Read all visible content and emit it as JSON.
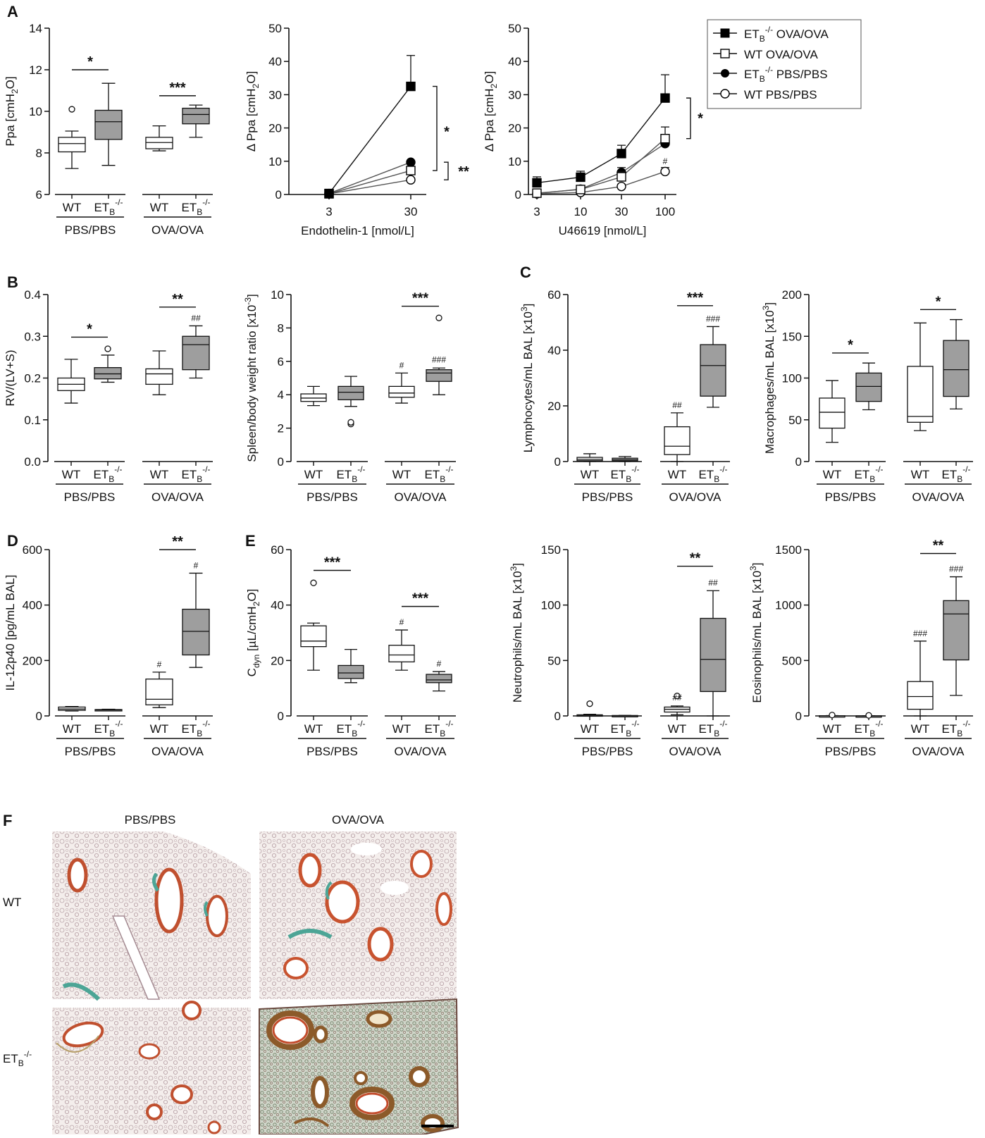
{
  "panel_letters": [
    "A",
    "B",
    "C",
    "D",
    "E",
    "F"
  ],
  "legend": {
    "items": [
      {
        "label": "ET",
        "sub": "B",
        "sup": "-/-",
        "rest": " OVA/OVA",
        "marker": "square",
        "fill": "#000000"
      },
      {
        "label": "WT OVA/OVA",
        "sub": "",
        "sup": "",
        "rest": "",
        "marker": "square",
        "fill": "#ffffff"
      },
      {
        "label": "ET",
        "sub": "B",
        "sup": "-/-",
        "rest": " PBS/PBS",
        "marker": "circle",
        "fill": "#000000"
      },
      {
        "label": "WT PBS/PBS",
        "sub": "",
        "sup": "",
        "rest": "",
        "marker": "circle",
        "fill": "#ffffff"
      }
    ]
  },
  "colors": {
    "ko_box": "#9e9e9e",
    "wt_box": "#ffffff",
    "line": "#111111",
    "tissue": "#ece4e0"
  },
  "groups": [
    "PBS/PBS",
    "OVA/OVA"
  ],
  "genotypes": [
    "WT",
    "ET_B^-/-"
  ],
  "histology": {
    "col_labels": [
      "PBS/PBS",
      "OVA/OVA"
    ],
    "row_labels": [
      "WT",
      "ET_B^-/-"
    ]
  },
  "chart_data": [
    {
      "id": "ppa",
      "panel": "A",
      "type": "box",
      "ylabel": "Ppa [cmH2O]",
      "ylim": [
        6,
        14
      ],
      "yticks": [
        6,
        8,
        10,
        12,
        14
      ],
      "boxes": [
        {
          "group": "PBS/PBS",
          "genotype": "WT",
          "min": 7.25,
          "q1": 8.05,
          "median": 8.45,
          "q3": 8.75,
          "max": 9.05,
          "outliers": [
            10.1
          ],
          "hash": ""
        },
        {
          "group": "PBS/PBS",
          "genotype": "ET_B^-/-",
          "min": 7.4,
          "q1": 8.65,
          "median": 9.5,
          "q3": 10.05,
          "max": 11.35,
          "outliers": [],
          "hash": ""
        },
        {
          "group": "OVA/OVA",
          "genotype": "WT",
          "min": 8.1,
          "q1": 8.2,
          "median": 8.5,
          "q3": 8.75,
          "max": 9.3,
          "outliers": [],
          "hash": ""
        },
        {
          "group": "OVA/OVA",
          "genotype": "ET_B^-/-",
          "min": 8.75,
          "q1": 9.4,
          "median": 9.85,
          "q3": 10.15,
          "max": 10.3,
          "outliers": [],
          "hash": ""
        }
      ],
      "sig": [
        {
          "label": "*",
          "pair": [
            0,
            1
          ],
          "y": 12.0
        },
        {
          "label": "***",
          "pair": [
            2,
            3
          ],
          "y": 10.75
        }
      ]
    },
    {
      "id": "et1",
      "panel": "A",
      "type": "line",
      "ylabel": "Δ Ppa [cmH2O]",
      "xlabel": "Endothelin-1 [nmol/L]",
      "x": [
        3,
        30
      ],
      "ylim": [
        0,
        50
      ],
      "yticks": [
        0,
        10,
        20,
        30,
        40,
        50
      ],
      "series": [
        {
          "name": "ETB-/- OVA/OVA",
          "values": [
            0.3,
            32.5
          ],
          "err": [
            0,
            9.3
          ]
        },
        {
          "name": "WT OVA/OVA",
          "values": [
            0.2,
            7.2
          ],
          "err": [
            0,
            0
          ]
        },
        {
          "name": "ETB-/- PBS/PBS",
          "values": [
            0.3,
            9.7
          ],
          "err": [
            0,
            0
          ]
        },
        {
          "name": "WT PBS/PBS",
          "values": [
            0.2,
            4.4
          ],
          "err": [
            0,
            0
          ]
        }
      ],
      "sig": [
        {
          "label": "*"
        },
        {
          "label": "**"
        }
      ]
    },
    {
      "id": "u46619",
      "panel": "A",
      "type": "line",
      "ylabel": "Δ Ppa [cmH2O]",
      "xlabel": "U46619 [nmol/L]",
      "x": [
        3,
        10,
        30,
        100
      ],
      "ylim": [
        0,
        50
      ],
      "yticks": [
        0,
        10,
        20,
        30,
        40,
        50
      ],
      "series": [
        {
          "name": "ETB-/- OVA/OVA",
          "values": [
            3.5,
            5.2,
            12.3,
            29.0
          ],
          "err": [
            1.8,
            1.8,
            2.5,
            7.0
          ]
        },
        {
          "name": "WT OVA/OVA",
          "values": [
            0.4,
            1.5,
            5.3,
            16.8
          ],
          "err": [
            0.3,
            0.6,
            1.5,
            3.5
          ]
        },
        {
          "name": "ETB-/- PBS/PBS",
          "values": [
            0.3,
            1.6,
            6.6,
            15.3
          ],
          "err": [
            0.3,
            0.6,
            1.5,
            2.5
          ]
        },
        {
          "name": "WT PBS/PBS",
          "values": [
            0.2,
            0.6,
            2.4,
            6.9
          ],
          "err": [
            0.2,
            0.3,
            0.6,
            1.2
          ]
        }
      ],
      "sig": [
        {
          "label": "*"
        },
        {
          "label": "#"
        }
      ]
    },
    {
      "id": "rv",
      "panel": "B",
      "type": "box",
      "ylabel": "RV/(LV+S)",
      "ylim": [
        0,
        0.4
      ],
      "yticks": [
        0.0,
        0.1,
        0.2,
        0.3,
        0.4
      ],
      "boxes": [
        {
          "group": "PBS/PBS",
          "genotype": "WT",
          "min": 0.14,
          "q1": 0.17,
          "median": 0.185,
          "q3": 0.2,
          "max": 0.245,
          "outliers": [],
          "hash": ""
        },
        {
          "group": "PBS/PBS",
          "genotype": "ET_B^-/-",
          "min": 0.19,
          "q1": 0.198,
          "median": 0.21,
          "q3": 0.225,
          "max": 0.255,
          "outliers": [
            0.27
          ],
          "hash": ""
        },
        {
          "group": "OVA/OVA",
          "genotype": "WT",
          "min": 0.16,
          "q1": 0.185,
          "median": 0.21,
          "q3": 0.222,
          "max": 0.265,
          "outliers": [],
          "hash": ""
        },
        {
          "group": "OVA/OVA",
          "genotype": "ET_B^-/-",
          "min": 0.2,
          "q1": 0.22,
          "median": 0.28,
          "q3": 0.3,
          "max": 0.325,
          "outliers": [],
          "hash": "##"
        }
      ],
      "sig": [
        {
          "label": "*",
          "pair": [
            0,
            1
          ],
          "y": 0.298
        },
        {
          "label": "**",
          "pair": [
            2,
            3
          ],
          "y": 0.37
        }
      ]
    },
    {
      "id": "spleen",
      "panel": "B",
      "type": "box",
      "ylabel": "Spleen/body weight ratio [x10-3]",
      "ylim": [
        0,
        10
      ],
      "yticks": [
        0,
        2,
        4,
        6,
        8,
        10
      ],
      "boxes": [
        {
          "group": "PBS/PBS",
          "genotype": "WT",
          "min": 3.35,
          "q1": 3.6,
          "median": 3.8,
          "q3": 4.05,
          "max": 4.5,
          "outliers": [],
          "hash": ""
        },
        {
          "group": "PBS/PBS",
          "genotype": "ET_B^-/-",
          "min": 3.3,
          "q1": 3.7,
          "median": 4.15,
          "q3": 4.5,
          "max": 5.1,
          "outliers": [
            2.25,
            2.35
          ],
          "hash": ""
        },
        {
          "group": "OVA/OVA",
          "genotype": "WT",
          "min": 3.5,
          "q1": 3.85,
          "median": 4.1,
          "q3": 4.5,
          "max": 5.3,
          "outliers": [],
          "hash": "#"
        },
        {
          "group": "OVA/OVA",
          "genotype": "ET_B^-/-",
          "min": 4.0,
          "q1": 4.8,
          "median": 5.3,
          "q3": 5.5,
          "max": 5.6,
          "outliers": [
            8.6
          ],
          "hash": "###"
        }
      ],
      "sig": [
        {
          "label": "***",
          "pair": [
            2,
            3
          ],
          "y": 9.3
        }
      ]
    },
    {
      "id": "lymph",
      "panel": "C",
      "type": "box",
      "ylabel": "Lymphocytes/mL BAL [x10^3]",
      "ylim": [
        0,
        60
      ],
      "yticks": [
        0,
        20,
        40,
        60
      ],
      "boxes": [
        {
          "group": "PBS/PBS",
          "genotype": "WT",
          "min": 0,
          "q1": 0.3,
          "median": 0.8,
          "q3": 1.5,
          "max": 2.8,
          "outliers": [],
          "hash": ""
        },
        {
          "group": "PBS/PBS",
          "genotype": "ET_B^-/-",
          "min": 0,
          "q1": 0.2,
          "median": 0.6,
          "q3": 1.2,
          "max": 1.8,
          "outliers": [],
          "hash": ""
        },
        {
          "group": "OVA/OVA",
          "genotype": "WT",
          "min": 0,
          "q1": 2.5,
          "median": 5.5,
          "q3": 12.5,
          "max": 17.5,
          "outliers": [],
          "hash": "##"
        },
        {
          "group": "OVA/OVA",
          "genotype": "ET_B^-/-",
          "min": 19.5,
          "q1": 23.5,
          "median": 34.5,
          "q3": 42.0,
          "max": 48.5,
          "outliers": [],
          "hash": "###"
        }
      ],
      "sig": [
        {
          "label": "***",
          "pair": [
            2,
            3
          ],
          "y": 56.0
        }
      ]
    },
    {
      "id": "macro",
      "panel": "C",
      "type": "box",
      "ylabel": "Macrophages/mL BAL [x10^3]",
      "ylim": [
        0,
        200
      ],
      "yticks": [
        0,
        50,
        100,
        150,
        200
      ],
      "boxes": [
        {
          "group": "PBS/PBS",
          "genotype": "WT",
          "min": 23,
          "q1": 40,
          "median": 59,
          "q3": 76,
          "max": 97,
          "outliers": [],
          "hash": ""
        },
        {
          "group": "PBS/PBS",
          "genotype": "ET_B^-/-",
          "min": 62,
          "q1": 72,
          "median": 90,
          "q3": 106,
          "max": 118,
          "outliers": [],
          "hash": ""
        },
        {
          "group": "OVA/OVA",
          "genotype": "WT",
          "min": 37,
          "q1": 47,
          "median": 54,
          "q3": 114,
          "max": 166,
          "outliers": [],
          "hash": ""
        },
        {
          "group": "OVA/OVA",
          "genotype": "ET_B^-/-",
          "min": 63,
          "q1": 78,
          "median": 110,
          "q3": 145,
          "max": 170,
          "outliers": [],
          "hash": ""
        }
      ],
      "sig": [
        {
          "label": "*",
          "pair": [
            0,
            1
          ],
          "y": 130
        },
        {
          "label": "*",
          "pair": [
            2,
            3
          ],
          "y": 182
        }
      ]
    },
    {
      "id": "il12",
      "panel": "D",
      "type": "box",
      "ylabel": "IL-12p40 [pg/mL BAL]",
      "ylim": [
        0,
        600
      ],
      "yticks": [
        0,
        200,
        400,
        600
      ],
      "boxes": [
        {
          "group": "PBS/PBS",
          "genotype": "WT",
          "min": 18,
          "q1": 20,
          "median": 25,
          "q3": 32,
          "max": 34,
          "outliers": [],
          "hash": ""
        },
        {
          "group": "PBS/PBS",
          "genotype": "ET_B^-/-",
          "min": 20,
          "q1": 21,
          "median": 22,
          "q3": 23,
          "max": 24,
          "outliers": [],
          "hash": ""
        },
        {
          "group": "OVA/OVA",
          "genotype": "WT",
          "min": 30,
          "q1": 40,
          "median": 60,
          "q3": 133,
          "max": 158,
          "outliers": [],
          "hash": "#"
        },
        {
          "group": "OVA/OVA",
          "genotype": "ET_B^-/-",
          "min": 175,
          "q1": 220,
          "median": 305,
          "q3": 385,
          "max": 515,
          "outliers": [],
          "hash": "#"
        }
      ],
      "sig": [
        {
          "label": "**",
          "pair": [
            2,
            3
          ],
          "y": 600
        }
      ]
    },
    {
      "id": "cdyn",
      "panel": "E",
      "type": "box",
      "ylabel": "Cdyn [µL/cmH2O]",
      "ylim": [
        0,
        60
      ],
      "yticks": [
        0,
        20,
        40,
        60
      ],
      "boxes": [
        {
          "group": "PBS/PBS",
          "genotype": "WT",
          "min": 16.5,
          "q1": 25,
          "median": 27,
          "q3": 32.5,
          "max": 33.5,
          "outliers": [
            48
          ],
          "hash": ""
        },
        {
          "group": "PBS/PBS",
          "genotype": "ET_B^-/-",
          "min": 12,
          "q1": 13.5,
          "median": 15.5,
          "q3": 18.2,
          "max": 24,
          "outliers": [],
          "hash": ""
        },
        {
          "group": "OVA/OVA",
          "genotype": "WT",
          "min": 16.5,
          "q1": 19.5,
          "median": 22,
          "q3": 25.5,
          "max": 31,
          "outliers": [],
          "hash": "#"
        },
        {
          "group": "OVA/OVA",
          "genotype": "ET_B^-/-",
          "min": 9,
          "q1": 12,
          "median": 13,
          "q3": 15,
          "max": 16,
          "outliers": [],
          "hash": "#"
        }
      ],
      "sig": [
        {
          "label": "***",
          "pair": [
            0,
            1
          ],
          "y": 52.5
        },
        {
          "label": "***",
          "pair": [
            2,
            3
          ],
          "y": 39.5
        }
      ]
    },
    {
      "id": "neut",
      "panel": "C",
      "type": "box",
      "ylabel": "Neutrophils/mL BAL [x10^3]",
      "ylim": [
        0,
        150
      ],
      "yticks": [
        0,
        50,
        100,
        150
      ],
      "boxes": [
        {
          "group": "PBS/PBS",
          "genotype": "WT",
          "min": 0,
          "q1": 0.2,
          "median": 0.5,
          "q3": 1,
          "max": 1.5,
          "outliers": [
            11
          ],
          "hash": ""
        },
        {
          "group": "PBS/PBS",
          "genotype": "ET_B^-/-",
          "min": 0,
          "q1": 0,
          "median": 0.2,
          "q3": 0.4,
          "max": 0.5,
          "outliers": [],
          "hash": ""
        },
        {
          "group": "OVA/OVA",
          "genotype": "WT",
          "min": 1,
          "q1": 3.5,
          "median": 6,
          "q3": 8,
          "max": 9,
          "outliers": [
            18
          ],
          "hash": "##"
        },
        {
          "group": "OVA/OVA",
          "genotype": "ET_B^-/-",
          "min": 0,
          "q1": 22,
          "median": 51,
          "q3": 88,
          "max": 113,
          "outliers": [],
          "hash": "##"
        }
      ],
      "sig": [
        {
          "label": "**",
          "pair": [
            2,
            3
          ],
          "y": 135
        }
      ]
    },
    {
      "id": "eos",
      "panel": "C",
      "type": "box",
      "ylabel": "Eosinophils/mL BAL [x10^3]",
      "ylim": [
        0,
        1500
      ],
      "yticks": [
        0,
        500,
        1000,
        1500
      ],
      "boxes": [
        {
          "group": "PBS/PBS",
          "genotype": "WT",
          "min": 0,
          "q1": 0,
          "median": 0,
          "q3": 2,
          "max": 3,
          "outliers": [
            8
          ],
          "hash": ""
        },
        {
          "group": "PBS/PBS",
          "genotype": "ET_B^-/-",
          "min": 0,
          "q1": 0,
          "median": 0,
          "q3": 1,
          "max": 2,
          "outliers": [
            5
          ],
          "hash": ""
        },
        {
          "group": "OVA/OVA",
          "genotype": "WT",
          "min": 0,
          "q1": 60,
          "median": 175,
          "q3": 310,
          "max": 675,
          "outliers": [],
          "hash": "###"
        },
        {
          "group": "OVA/OVA",
          "genotype": "ET_B^-/-",
          "min": 185,
          "q1": 505,
          "median": 920,
          "q3": 1040,
          "max": 1255,
          "outliers": [],
          "hash": "###"
        }
      ],
      "sig": [
        {
          "label": "**",
          "pair": [
            2,
            3
          ],
          "y": 1465
        }
      ]
    }
  ]
}
